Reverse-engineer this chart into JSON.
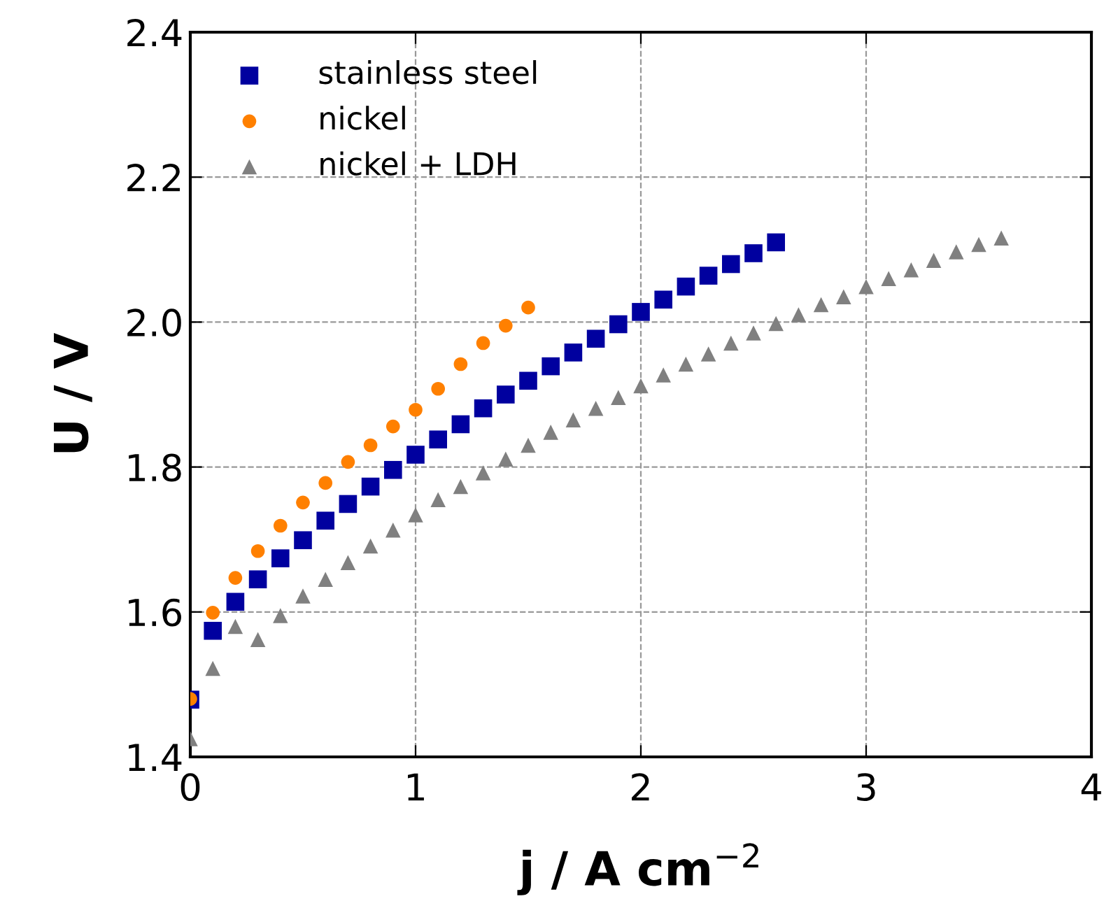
{
  "chart_data": {
    "type": "scatter",
    "xlabel": "j / A cm$^{−2}$",
    "ylabel": "U / V",
    "xlim": [
      0,
      4
    ],
    "xticks": [
      0,
      1,
      2,
      3,
      4
    ],
    "ylim": [
      1.4,
      2.4
    ],
    "yticks": [
      {
        "value": 1.4,
        "label": "1.4"
      },
      {
        "value": 1.6,
        "label": "1.6"
      },
      {
        "value": 1.8,
        "label": "1.8"
      },
      {
        "value": 2.0,
        "label": "2.0"
      },
      {
        "value": 2.2,
        "label": "2.2"
      },
      {
        "value": 2.4,
        "label": "2.4"
      }
    ],
    "grid": true,
    "legend": "top left",
    "series": [
      {
        "name": "stainless steel",
        "color": "#00009f",
        "marker": "square",
        "x": [
          0,
          0.1,
          0.2,
          0.3,
          0.4,
          0.5,
          0.6,
          0.7,
          0.8,
          0.9,
          1.0,
          1.1,
          1.2,
          1.3,
          1.4,
          1.5,
          1.6,
          1.7,
          1.8,
          1.9,
          2.0,
          2.1,
          2.2,
          2.3,
          2.4,
          2.5,
          2.6
        ],
        "values": [
          1.479,
          1.574,
          1.614,
          1.645,
          1.674,
          1.699,
          1.726,
          1.749,
          1.773,
          1.796,
          1.817,
          1.838,
          1.859,
          1.881,
          1.9,
          1.919,
          1.939,
          1.958,
          1.977,
          1.997,
          2.014,
          2.031,
          2.049,
          2.064,
          2.08,
          2.095,
          2.11
        ]
      },
      {
        "name": "nickel",
        "color": "#ff8000",
        "marker": "circle",
        "x": [
          0,
          0.1,
          0.2,
          0.3,
          0.4,
          0.5,
          0.6,
          0.7,
          0.8,
          0.9,
          1.0,
          1.1,
          1.2,
          1.3,
          1.4,
          1.5
        ],
        "values": [
          1.48,
          1.599,
          1.647,
          1.684,
          1.719,
          1.751,
          1.778,
          1.807,
          1.83,
          1.856,
          1.879,
          1.908,
          1.942,
          1.971,
          1.995,
          2.02
        ]
      },
      {
        "name": "nickel + LDH",
        "color": "#808080",
        "marker": "triangle",
        "x": [
          0,
          0.1,
          0.2,
          0.3,
          0.4,
          0.5,
          0.6,
          0.7,
          0.8,
          0.9,
          1.0,
          1.1,
          1.2,
          1.3,
          1.4,
          1.5,
          1.6,
          1.7,
          1.8,
          1.9,
          2.0,
          2.1,
          2.2,
          2.3,
          2.4,
          2.5,
          2.6,
          2.7,
          2.8,
          2.9,
          3.0,
          3.1,
          3.2,
          3.3,
          3.4,
          3.5,
          3.6
        ],
        "values": [
          1.425,
          1.522,
          1.58,
          1.562,
          1.595,
          1.622,
          1.645,
          1.668,
          1.691,
          1.713,
          1.734,
          1.755,
          1.773,
          1.792,
          1.811,
          1.83,
          1.848,
          1.865,
          1.881,
          1.896,
          1.912,
          1.927,
          1.942,
          1.956,
          1.971,
          1.985,
          1.998,
          2.01,
          2.024,
          2.035,
          2.049,
          2.06,
          2.072,
          2.085,
          2.097,
          2.107,
          2.116
        ]
      }
    ]
  }
}
